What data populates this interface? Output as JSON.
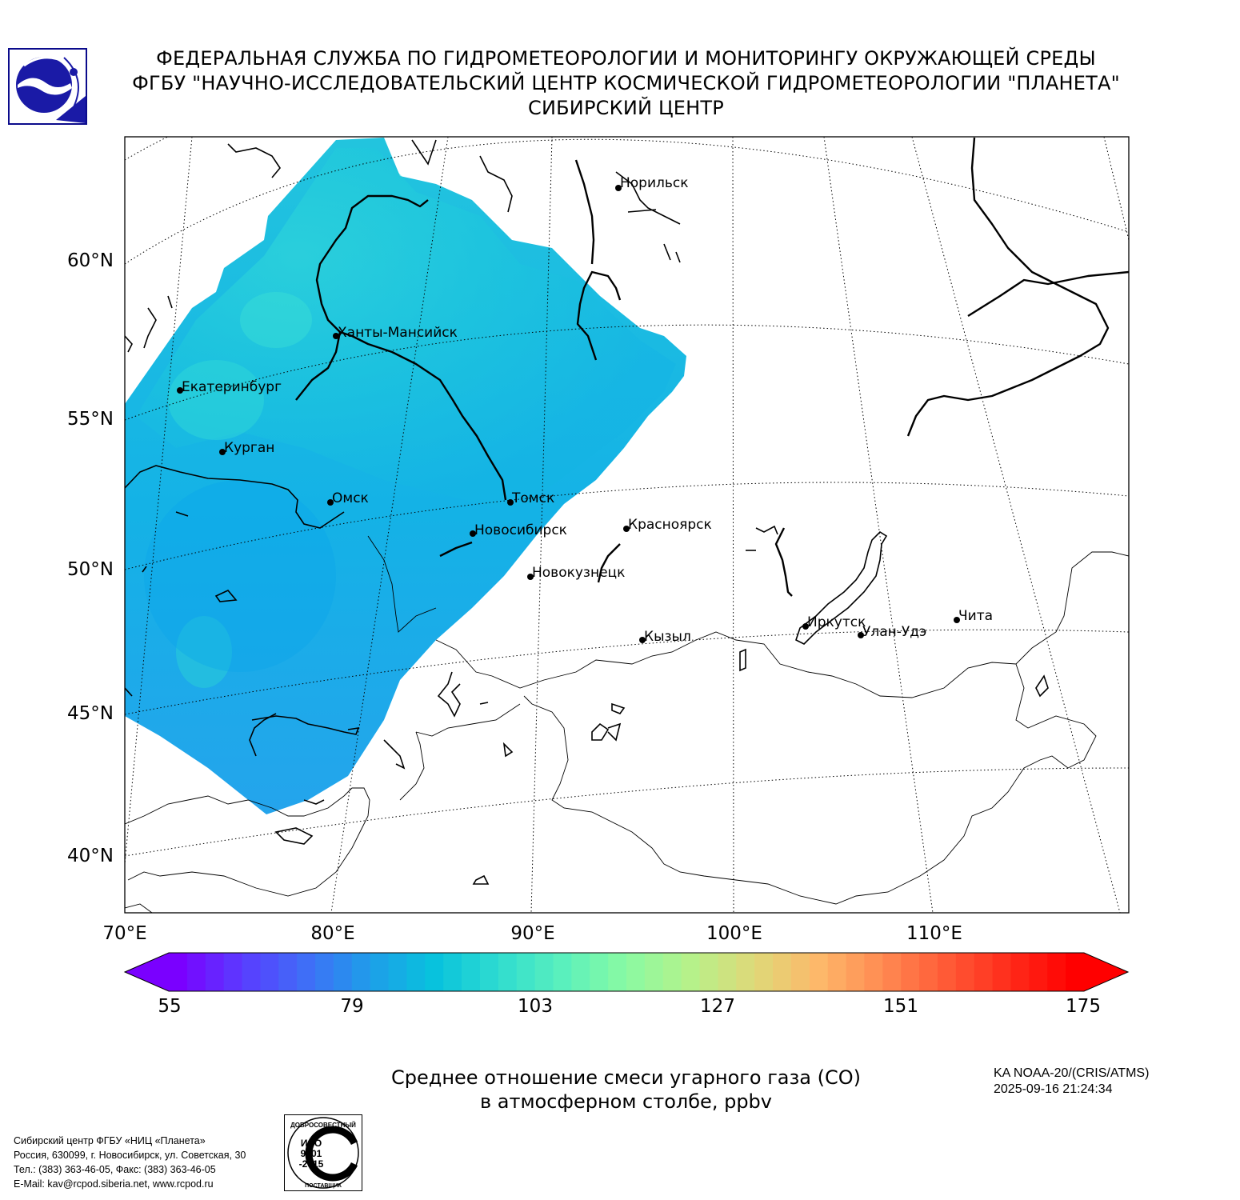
{
  "header": {
    "line1": "ФЕДЕРАЛЬНАЯ СЛУЖБА ПО ГИДРОМЕТЕОРОЛОГИИ И МОНИТОРИНГУ ОКРУЖАЮЩЕЙ СРЕДЫ",
    "line2": "ФГБУ \"НАУЧНО-ИССЛЕДОВАТЕЛЬСКИЙ ЦЕНТР КОСМИЧЕСКОЙ ГИДРОМЕТЕОРОЛОГИИ \"ПЛАНЕТА\"",
    "line3": "СИБИРСКИЙ ЦЕНТР"
  },
  "map": {
    "lat_labels": [
      "60°N",
      "55°N",
      "50°N",
      "45°N",
      "40°N"
    ],
    "lon_labels": [
      "70°E",
      "80°E",
      "90°E",
      "100°E",
      "110°E"
    ],
    "cities": [
      "Норильск",
      "Ханты-Мансийск",
      "Екатеринбург",
      "Курган",
      "Омск",
      "Томск",
      "Новосибирск",
      "Красноярск",
      "Новокузнецк",
      "Кызыл",
      "Иркутск",
      "Улан-Удэ",
      "Чита"
    ],
    "field_colors": [
      "#1ec8dc",
      "#28d4dc",
      "#34dcd8",
      "#14b4e4",
      "#0aa6e8",
      "#26a2ec"
    ]
  },
  "colorbar": {
    "ticks": [
      "55",
      "79",
      "103",
      "127",
      "151",
      "175"
    ],
    "colors": [
      "#7a00ff",
      "#5a3cff",
      "#3f6ef7",
      "#1e9ee9",
      "#08c2dd",
      "#2fdcd0",
      "#5af0bd",
      "#8afaa2",
      "#b6f18a",
      "#dfd978",
      "#fdb86a",
      "#ff8a52",
      "#ff5a36",
      "#ff2a1a",
      "#ff0000"
    ]
  },
  "caption": {
    "line1": "Среднее отношение смеси угарного газа (CO)",
    "line2": "в атмосферном столбе, ppbv"
  },
  "satellite": {
    "name": "KA NOAA-20/(CRIS/ATMS)",
    "datetime": "2025-09-16 21:24:34"
  },
  "org": {
    "line1": "Сибирский центр ФГБУ «НИЦ «Планета»",
    "line2": "Россия, 630099, г. Новосибирск, ул. Советская, 30",
    "line3": "Тел.: (383) 363-46-05, Факс: (383) 363-46-05",
    "line4": "E-Mail: kav@rcpod.siberia.net, www.rcpod.ru"
  },
  "iso": {
    "top": "ДОБРОСОВЕСТНЫЙ",
    "line1": "ИСО",
    "line2": "9001",
    "line3": "-2015",
    "bottom": "ПОСТАВЩИК"
  }
}
